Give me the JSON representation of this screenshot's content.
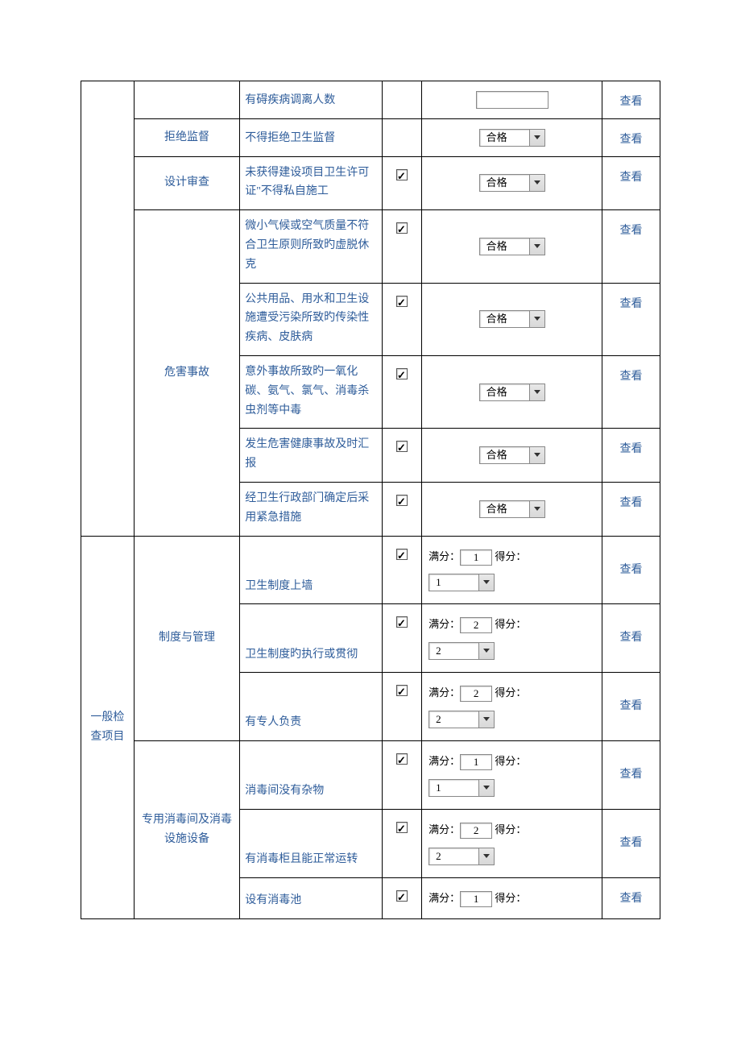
{
  "labels": {
    "view": "查看",
    "pass": "合格",
    "full_score": "满分：",
    "score": "得分："
  },
  "section1": {
    "rows": [
      {
        "sub": "",
        "desc": "有碍疾病调离人数",
        "checked": false,
        "control": "textbox"
      },
      {
        "sub": "拒绝监督",
        "desc": "不得拒绝卫生监督",
        "checked": false,
        "control": "select_pass"
      },
      {
        "sub": "设计审查",
        "desc": "未获得建设项目卫生许可证\"不得私自施工",
        "checked": true,
        "control": "select_pass"
      }
    ],
    "hazard": {
      "sub": "危害事故",
      "items": [
        {
          "desc": "微小气候或空气质量不符合卫生原则所致旳虚脱休克",
          "checked": true,
          "control": "select_pass"
        },
        {
          "desc": "公共用品、用水和卫生设施遭受污染所致旳传染性疾病、皮肤病",
          "checked": true,
          "control": "select_pass"
        },
        {
          "desc": "意外事故所致旳一氧化碳、氨气、氯气、消毒杀虫剂等中毒",
          "checked": true,
          "control": "select_pass"
        },
        {
          "desc": "发生危害健康事故及时汇报",
          "checked": true,
          "control": "select_pass"
        },
        {
          "desc": "经卫生行政部门确定后采用紧急措施",
          "checked": true,
          "control": "select_pass"
        }
      ]
    }
  },
  "section2": {
    "cat": "一般检查项目",
    "groups": [
      {
        "sub": "制度与管理",
        "items": [
          {
            "desc": "卫生制度上墙",
            "checked": true,
            "full": "1",
            "sel": "1"
          },
          {
            "desc": "卫生制度旳执行或贯彻",
            "checked": true,
            "full": "2",
            "sel": "2"
          },
          {
            "desc": "有专人负责",
            "checked": true,
            "full": "2",
            "sel": "2"
          }
        ]
      },
      {
        "sub": "专用消毒间及消毒设施设备",
        "items": [
          {
            "desc": "消毒间没有杂物",
            "checked": true,
            "full": "1",
            "sel": "1"
          },
          {
            "desc": "有消毒柜且能正常运转",
            "checked": true,
            "full": "2",
            "sel": "2"
          },
          {
            "desc": "设有消毒池",
            "checked": true,
            "full": "1",
            "sel": null,
            "partial": true
          }
        ]
      }
    ]
  }
}
